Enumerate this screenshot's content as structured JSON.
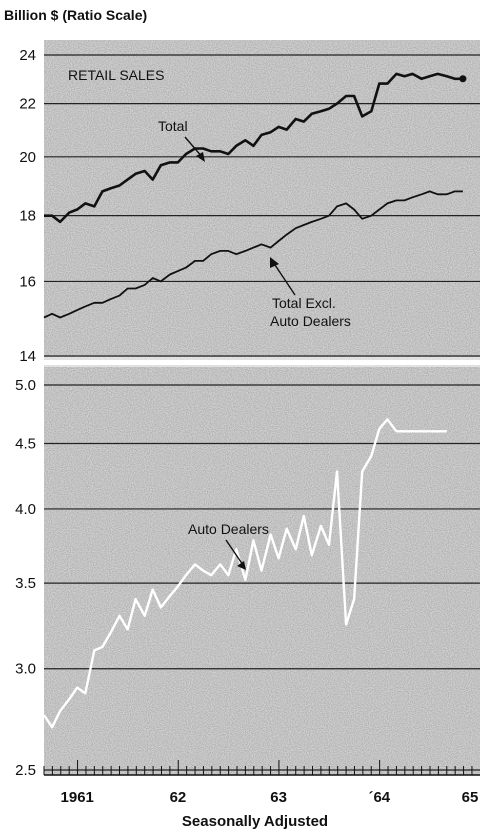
{
  "chart_data": [
    {
      "type": "line",
      "panel": "top",
      "title": "RETAIL SALES",
      "ylabel": "Billion $ (Ratio Scale)",
      "yscale": "log",
      "ylim": [
        14,
        24.5
      ],
      "yticks": [
        14,
        16,
        18,
        20,
        22,
        24
      ],
      "xlim": [
        1960.67,
        1965.0
      ],
      "xticks": [
        "1961",
        "62",
        "63",
        "´64",
        "65"
      ],
      "grid": true,
      "series": [
        {
          "name": "Total",
          "color": "#111111",
          "x": [
            1960.67,
            1960.75,
            1960.83,
            1960.92,
            1961.0,
            1961.08,
            1961.17,
            1961.25,
            1961.33,
            1961.42,
            1961.5,
            1961.58,
            1961.67,
            1961.75,
            1961.83,
            1961.92,
            1962.0,
            1962.08,
            1962.17,
            1962.25,
            1962.33,
            1962.42,
            1962.5,
            1962.58,
            1962.67,
            1962.75,
            1962.83,
            1962.92,
            1963.0,
            1963.08,
            1963.17,
            1963.25,
            1963.33,
            1963.42,
            1963.5,
            1963.58,
            1963.67,
            1963.75,
            1963.83,
            1963.92,
            1964.0,
            1964.08,
            1964.17,
            1964.25,
            1964.33,
            1964.42,
            1964.5,
            1964.58,
            1964.67,
            1964.75,
            1964.83
          ],
          "values": [
            18.0,
            18.0,
            17.8,
            18.1,
            18.2,
            18.4,
            18.3,
            18.8,
            18.9,
            19.0,
            19.2,
            19.4,
            19.5,
            19.2,
            19.7,
            19.8,
            19.8,
            20.1,
            20.3,
            20.3,
            20.2,
            20.2,
            20.1,
            20.4,
            20.6,
            20.4,
            20.8,
            20.9,
            21.1,
            21.0,
            21.4,
            21.3,
            21.6,
            21.7,
            21.8,
            22.0,
            22.3,
            22.3,
            21.5,
            21.7,
            22.8,
            22.8,
            23.2,
            23.1,
            23.2,
            23.0,
            23.1,
            23.2,
            23.1,
            23.0,
            23.0
          ],
          "annotation": "Total"
        },
        {
          "name": "Total Excl. Auto Dealers",
          "color": "#111111",
          "x": [
            1960.67,
            1960.75,
            1960.83,
            1960.92,
            1961.0,
            1961.08,
            1961.17,
            1961.25,
            1961.33,
            1961.42,
            1961.5,
            1961.58,
            1961.67,
            1961.75,
            1961.83,
            1961.92,
            1962.0,
            1962.08,
            1962.17,
            1962.25,
            1962.33,
            1962.42,
            1962.5,
            1962.58,
            1962.67,
            1962.75,
            1962.83,
            1962.92,
            1963.0,
            1963.08,
            1963.17,
            1963.25,
            1963.33,
            1963.42,
            1963.5,
            1963.58,
            1963.67,
            1963.75,
            1963.83,
            1963.92,
            1964.0,
            1964.08,
            1964.17,
            1964.25,
            1964.33,
            1964.42,
            1964.5,
            1964.58,
            1964.67,
            1964.75,
            1964.83
          ],
          "values": [
            15.0,
            15.1,
            15.0,
            15.1,
            15.2,
            15.3,
            15.4,
            15.4,
            15.5,
            15.6,
            15.8,
            15.8,
            15.9,
            16.1,
            16.0,
            16.2,
            16.3,
            16.4,
            16.6,
            16.6,
            16.8,
            16.9,
            16.9,
            16.8,
            16.9,
            17.0,
            17.1,
            17.0,
            17.2,
            17.4,
            17.6,
            17.7,
            17.8,
            17.9,
            18.0,
            18.3,
            18.4,
            18.2,
            17.9,
            18.0,
            18.2,
            18.4,
            18.5,
            18.5,
            18.6,
            18.7,
            18.8,
            18.7,
            18.7,
            18.8,
            18.8
          ],
          "annotation": "Total Excl. Auto Dealers"
        }
      ]
    },
    {
      "type": "line",
      "panel": "bottom",
      "yscale": "log",
      "ylim": [
        2.5,
        5.0
      ],
      "yticks": [
        2.5,
        3.0,
        3.5,
        4.0,
        4.5,
        5.0
      ],
      "xlim": [
        1960.67,
        1965.0
      ],
      "xticks": [
        "1961",
        "62",
        "63",
        "´64",
        "65"
      ],
      "xlabel": "Seasonally Adjusted",
      "grid": true,
      "series": [
        {
          "name": "Auto Dealers",
          "color": "#ffffff",
          "x": [
            1960.67,
            1960.75,
            1960.83,
            1960.92,
            1961.0,
            1961.08,
            1961.17,
            1961.25,
            1961.33,
            1961.42,
            1961.5,
            1961.58,
            1961.67,
            1961.75,
            1961.83,
            1961.92,
            1962.0,
            1962.08,
            1962.17,
            1962.25,
            1962.33,
            1962.42,
            1962.5,
            1962.58,
            1962.67,
            1962.75,
            1962.83,
            1962.92,
            1963.0,
            1963.08,
            1963.17,
            1963.25,
            1963.33,
            1963.42,
            1963.5,
            1963.58,
            1963.67,
            1963.75,
            1963.83,
            1963.92,
            1964.0,
            1964.08,
            1964.17,
            1964.25,
            1964.33,
            1964.42,
            1964.5,
            1964.58,
            1964.67
          ],
          "values": [
            2.76,
            2.7,
            2.78,
            2.84,
            2.9,
            2.87,
            3.1,
            3.12,
            3.2,
            3.3,
            3.22,
            3.4,
            3.3,
            3.46,
            3.35,
            3.42,
            3.48,
            3.55,
            3.62,
            3.58,
            3.55,
            3.62,
            3.55,
            3.72,
            3.52,
            3.78,
            3.58,
            3.82,
            3.66,
            3.86,
            3.72,
            3.95,
            3.68,
            3.88,
            3.75,
            4.28,
            3.25,
            3.4,
            4.28,
            4.4,
            4.62,
            4.7,
            4.6,
            4.6,
            4.6,
            4.6,
            4.6,
            4.6,
            4.6
          ],
          "annotation": "Auto Dealers"
        }
      ]
    }
  ]
}
